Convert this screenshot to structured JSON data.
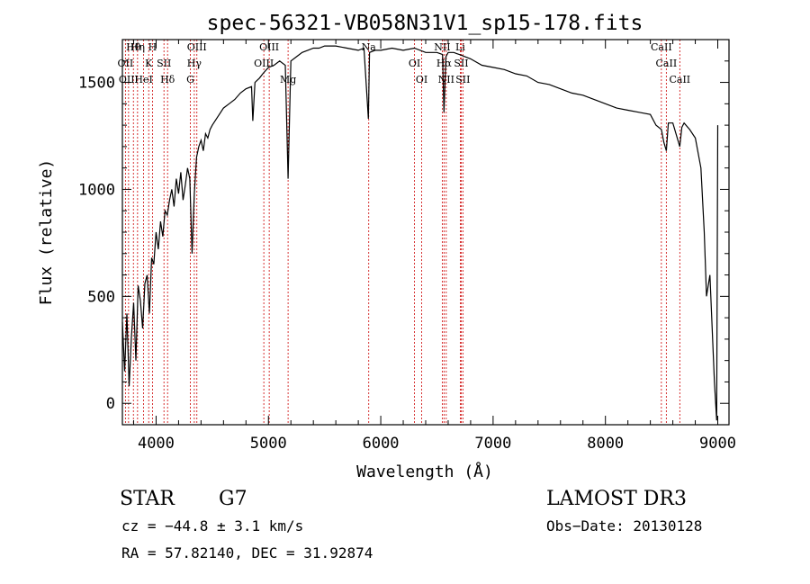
{
  "chart_data": {
    "type": "line",
    "title": "spec-56321-VB058N31V1_sp15-178.fits",
    "xlabel": "Wavelength (Å)",
    "ylabel": "Flux (relative)",
    "xlim": [
      3700,
      9100
    ],
    "ylim": [
      -100,
      1700
    ],
    "x_ticks": [
      4000,
      5000,
      6000,
      7000,
      8000,
      9000
    ],
    "x_tick_labels": [
      "4000",
      "5000",
      "6000",
      "7000",
      "8000",
      "9000"
    ],
    "y_ticks": [
      0,
      500,
      1000,
      1500
    ],
    "y_tick_labels": [
      "0",
      "500",
      "1000",
      "1500"
    ],
    "grid": false,
    "series": [
      {
        "name": "flux",
        "x": [
          3700,
          3720,
          3740,
          3760,
          3780,
          3800,
          3820,
          3840,
          3860,
          3880,
          3900,
          3920,
          3940,
          3960,
          3980,
          4000,
          4020,
          4040,
          4060,
          4080,
          4100,
          4120,
          4140,
          4160,
          4180,
          4200,
          4220,
          4240,
          4260,
          4280,
          4300,
          4320,
          4340,
          4360,
          4380,
          4400,
          4420,
          4440,
          4460,
          4480,
          4500,
          4550,
          4600,
          4650,
          4700,
          4750,
          4800,
          4850,
          4861,
          4880,
          4900,
          4920,
          4950,
          5000,
          5050,
          5100,
          5150,
          5175,
          5200,
          5250,
          5300,
          5350,
          5400,
          5450,
          5500,
          5600,
          5700,
          5800,
          5850,
          5890,
          5900,
          5950,
          6000,
          6100,
          6200,
          6300,
          6400,
          6500,
          6550,
          6563,
          6580,
          6600,
          6650,
          6700,
          6800,
          6900,
          7000,
          7100,
          7200,
          7300,
          7400,
          7500,
          7600,
          7700,
          7800,
          7900,
          8000,
          8100,
          8200,
          8300,
          8400,
          8450,
          8498,
          8520,
          8542,
          8560,
          8600,
          8662,
          8680,
          8700,
          8750,
          8800,
          8850,
          8880,
          8900,
          8930,
          8950,
          8970,
          8990,
          9000
        ],
        "y": [
          380,
          150,
          420,
          80,
          310,
          470,
          200,
          550,
          480,
          350,
          560,
          600,
          420,
          680,
          650,
          800,
          720,
          850,
          780,
          900,
          880,
          950,
          1000,
          920,
          1050,
          980,
          1080,
          950,
          1020,
          1100,
          1050,
          700,
          980,
          1150,
          1200,
          1230,
          1180,
          1260,
          1240,
          1280,
          1300,
          1340,
          1380,
          1400,
          1420,
          1450,
          1470,
          1480,
          1320,
          1500,
          1510,
          1520,
          1540,
          1570,
          1580,
          1600,
          1580,
          1050,
          1600,
          1620,
          1640,
          1650,
          1660,
          1660,
          1670,
          1670,
          1660,
          1650,
          1660,
          1330,
          1640,
          1650,
          1650,
          1660,
          1650,
          1660,
          1640,
          1640,
          1630,
          1360,
          1620,
          1640,
          1640,
          1630,
          1610,
          1580,
          1570,
          1560,
          1540,
          1530,
          1500,
          1490,
          1470,
          1450,
          1440,
          1420,
          1400,
          1380,
          1370,
          1360,
          1350,
          1300,
          1280,
          1220,
          1180,
          1310,
          1310,
          1200,
          1290,
          1310,
          1280,
          1240,
          1100,
          800,
          500,
          600,
          350,
          100,
          -80,
          1300
        ]
      }
    ],
    "line_markers": [
      {
        "label": "Hθ",
        "wavelength": 3798
      },
      {
        "label": "OII",
        "wavelength": 3727
      },
      {
        "label": "OIII",
        "wavelength": 3755
      },
      {
        "label": "Hη",
        "wavelength": 3835
      },
      {
        "label": "K",
        "wavelength": 3934
      },
      {
        "label": "HeI",
        "wavelength": 3889
      },
      {
        "label": "H",
        "wavelength": 3968
      },
      {
        "label": "SII",
        "wavelength": 4070
      },
      {
        "label": "Hδ",
        "wavelength": 4102
      },
      {
        "label": "OIII",
        "wavelength": 4363
      },
      {
        "label": "Hγ",
        "wavelength": 4340
      },
      {
        "label": "G",
        "wavelength": 4305
      },
      {
        "label": "OIII",
        "wavelength": 5007
      },
      {
        "label": "OIII",
        "wavelength": 4959
      },
      {
        "label": "Mg",
        "wavelength": 5175
      },
      {
        "label": "Na",
        "wavelength": 5893
      },
      {
        "label": "OI",
        "wavelength": 6300
      },
      {
        "label": "OI",
        "wavelength": 6364
      },
      {
        "label": "NII",
        "wavelength": 6548
      },
      {
        "label": "Hα",
        "wavelength": 6563
      },
      {
        "label": "NII",
        "wavelength": 6583
      },
      {
        "label": "Li",
        "wavelength": 6708
      },
      {
        "label": "SII",
        "wavelength": 6716
      },
      {
        "label": "SII",
        "wavelength": 6731
      },
      {
        "label": "CaII",
        "wavelength": 8498
      },
      {
        "label": "CaII",
        "wavelength": 8542
      },
      {
        "label": "CaII",
        "wavelength": 8662
      }
    ]
  },
  "info": {
    "object_class": "STAR",
    "subclass": "G7",
    "cz": "cz = −44.8 ± 3.1 km/s",
    "radec": "RA =  57.82140, DEC =  31.92874",
    "survey": "LAMOST DR3",
    "obs_date": "Obs−Date: 20130128"
  },
  "colors": {
    "spectrum": "#000000",
    "marker_lines": "#cc0000",
    "axes": "#000000"
  }
}
